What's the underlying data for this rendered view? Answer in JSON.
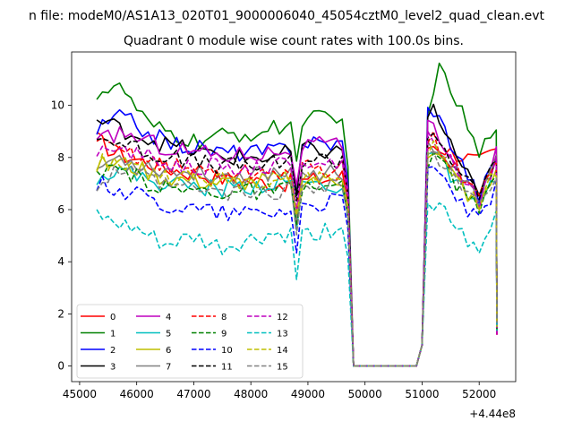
{
  "chart_data": {
    "type": "line",
    "suptitle": "n file: modeM0/AS1A13_020T01_9000006040_45054cztM0_level2_quad_clean.evt",
    "title": "Quadrant 0 module wise count rates with 100.0s bins.",
    "xlabel": "",
    "ylabel": "",
    "x_offset_text": "+4.44e8",
    "xlim": [
      44860,
      52640
    ],
    "ylim": [
      -0.6,
      12.05
    ],
    "xticks": [
      45000,
      46000,
      47000,
      48000,
      49000,
      50000,
      51000,
      52000
    ],
    "yticks": [
      0,
      2,
      4,
      6,
      8,
      10
    ],
    "grid": false,
    "legend_loc": "lower-left",
    "legend_ncol": 4,
    "series": [
      {
        "name": "0",
        "color": "#ff0000",
        "dash": "solid",
        "level": 7.3,
        "anchors": [
          [
            45300,
            8.7
          ],
          [
            45600,
            8.2
          ],
          [
            46500,
            7.6
          ],
          [
            47500,
            7.2
          ],
          [
            48500,
            7.0
          ],
          [
            49500,
            7.2
          ],
          [
            51200,
            8.5
          ],
          [
            52000,
            7.8
          ],
          [
            52300,
            8.2
          ]
        ]
      },
      {
        "name": "1",
        "color": "#008000",
        "dash": "solid",
        "level": 9.0,
        "anchors": [
          [
            45300,
            10.5
          ],
          [
            45600,
            10.7
          ],
          [
            45800,
            10.5
          ],
          [
            46200,
            9.2
          ],
          [
            47000,
            8.6
          ],
          [
            47500,
            8.8
          ],
          [
            48300,
            9.0
          ],
          [
            49000,
            9.6
          ],
          [
            49500,
            9.3
          ],
          [
            51100,
            10.0
          ],
          [
            51300,
            11.3
          ],
          [
            51600,
            10.2
          ],
          [
            52000,
            8.0
          ],
          [
            52300,
            9.4
          ]
        ]
      },
      {
        "name": "2",
        "color": "#0000ff",
        "dash": "solid",
        "level": 8.3,
        "anchors": [
          [
            45300,
            9.0
          ],
          [
            45700,
            9.6
          ],
          [
            46500,
            8.6
          ],
          [
            47500,
            8.2
          ],
          [
            48300,
            8.2
          ],
          [
            49000,
            8.6
          ],
          [
            49500,
            8.5
          ],
          [
            51200,
            9.9
          ],
          [
            52000,
            6.5
          ],
          [
            52300,
            8.0
          ]
        ]
      },
      {
        "name": "3",
        "color": "#000000",
        "dash": "solid",
        "level": 8.0,
        "anchors": [
          [
            45300,
            9.4
          ],
          [
            45600,
            9.2
          ],
          [
            46500,
            8.5
          ],
          [
            47500,
            8.0
          ],
          [
            48300,
            8.0
          ],
          [
            49000,
            8.3
          ],
          [
            49500,
            8.2
          ],
          [
            51200,
            9.8
          ],
          [
            52000,
            6.4
          ],
          [
            52300,
            8.0
          ]
        ]
      },
      {
        "name": "4",
        "color": "#bf00bf",
        "dash": "solid",
        "level": 8.0,
        "anchors": [
          [
            45300,
            8.5
          ],
          [
            45700,
            9.0
          ],
          [
            46500,
            8.4
          ],
          [
            47500,
            8.1
          ],
          [
            48300,
            8.2
          ],
          [
            49000,
            8.5
          ],
          [
            49500,
            8.4
          ],
          [
            51200,
            9.2
          ],
          [
            52000,
            6.2
          ],
          [
            52300,
            8.1
          ]
        ]
      },
      {
        "name": "5",
        "color": "#00bfbf",
        "dash": "solid",
        "level": 6.9,
        "anchors": [
          [
            45300,
            7.3
          ],
          [
            45700,
            7.5
          ],
          [
            46500,
            7.0
          ],
          [
            47500,
            6.8
          ],
          [
            48300,
            7.0
          ],
          [
            49000,
            7.0
          ],
          [
            49500,
            6.9
          ],
          [
            51200,
            8.2
          ],
          [
            52000,
            5.9
          ],
          [
            52300,
            7.2
          ]
        ]
      },
      {
        "name": "6",
        "color": "#bfbf00",
        "dash": "solid",
        "level": 7.1,
        "anchors": [
          [
            45300,
            7.7
          ],
          [
            45700,
            7.8
          ],
          [
            46500,
            7.2
          ],
          [
            47500,
            7.0
          ],
          [
            48300,
            7.1
          ],
          [
            49000,
            7.2
          ],
          [
            49500,
            7.1
          ],
          [
            51200,
            8.3
          ],
          [
            52000,
            6.0
          ],
          [
            52300,
            7.5
          ]
        ]
      },
      {
        "name": "7",
        "color": "#808080",
        "dash": "solid",
        "level": 7.4,
        "anchors": [
          [
            45300,
            7.6
          ],
          [
            45700,
            8.0
          ],
          [
            46500,
            7.5
          ],
          [
            47500,
            7.3
          ],
          [
            48300,
            7.4
          ],
          [
            49000,
            7.5
          ],
          [
            49500,
            7.4
          ],
          [
            51200,
            8.5
          ],
          [
            52000,
            6.3
          ],
          [
            52300,
            7.8
          ]
        ]
      },
      {
        "name": "8",
        "color": "#ff0000",
        "dash": "dashed",
        "level": 7.5,
        "anchors": [
          [
            45300,
            8.5
          ],
          [
            45700,
            8.3
          ],
          [
            46500,
            7.7
          ],
          [
            47500,
            7.4
          ],
          [
            48300,
            7.4
          ],
          [
            49000,
            7.6
          ],
          [
            49500,
            7.5
          ],
          [
            51200,
            8.7
          ],
          [
            52000,
            6.4
          ],
          [
            52300,
            8.1
          ]
        ]
      },
      {
        "name": "9",
        "color": "#008000",
        "dash": "dashed",
        "level": 6.7,
        "anchors": [
          [
            45300,
            7.2
          ],
          [
            45700,
            7.5
          ],
          [
            46500,
            6.8
          ],
          [
            47500,
            6.7
          ],
          [
            48300,
            6.7
          ],
          [
            49000,
            6.9
          ],
          [
            49500,
            6.8
          ],
          [
            51200,
            8.0
          ],
          [
            52000,
            6.0
          ],
          [
            52300,
            7.3
          ]
        ]
      },
      {
        "name": "10",
        "color": "#0000ff",
        "dash": "dashed",
        "level": 6.2,
        "anchors": [
          [
            45300,
            7.0
          ],
          [
            45700,
            6.8
          ],
          [
            46500,
            6.2
          ],
          [
            47500,
            5.9
          ],
          [
            48300,
            5.9
          ],
          [
            49000,
            6.2
          ],
          [
            49500,
            6.3
          ],
          [
            51200,
            7.6
          ],
          [
            52000,
            5.5
          ],
          [
            52300,
            6.9
          ]
        ]
      },
      {
        "name": "11",
        "color": "#000000",
        "dash": "dashed",
        "level": 7.8,
        "anchors": [
          [
            45300,
            8.8
          ],
          [
            45700,
            8.6
          ],
          [
            46500,
            8.0
          ],
          [
            47500,
            7.7
          ],
          [
            48300,
            7.7
          ],
          [
            49000,
            8.0
          ],
          [
            49500,
            7.9
          ],
          [
            51200,
            9.0
          ],
          [
            52000,
            6.4
          ],
          [
            52300,
            8.2
          ]
        ]
      },
      {
        "name": "12",
        "color": "#bf00bf",
        "dash": "dashed",
        "level": 7.7,
        "anchors": [
          [
            45300,
            8.0
          ],
          [
            45700,
            8.4
          ],
          [
            46500,
            7.8
          ],
          [
            47500,
            7.6
          ],
          [
            48300,
            7.6
          ],
          [
            49000,
            7.9
          ],
          [
            49500,
            7.8
          ],
          [
            51200,
            8.8
          ],
          [
            52000,
            6.3
          ],
          [
            52300,
            8.1
          ]
        ]
      },
      {
        "name": "13",
        "color": "#00bfbf",
        "dash": "dashed",
        "level": 4.9,
        "anchors": [
          [
            45300,
            5.8
          ],
          [
            45500,
            5.5
          ],
          [
            46000,
            5.2
          ],
          [
            46500,
            4.6
          ],
          [
            47000,
            4.9
          ],
          [
            47500,
            4.5
          ],
          [
            48300,
            5.0
          ],
          [
            49000,
            5.0
          ],
          [
            49500,
            5.3
          ],
          [
            51200,
            6.3
          ],
          [
            52000,
            4.2
          ],
          [
            52300,
            5.8
          ]
        ]
      },
      {
        "name": "14",
        "color": "#bfbf00",
        "dash": "dashed",
        "level": 7.2,
        "anchors": [
          [
            45300,
            7.8
          ],
          [
            45700,
            7.8
          ],
          [
            46500,
            7.3
          ],
          [
            47500,
            7.1
          ],
          [
            48300,
            7.2
          ],
          [
            49000,
            7.3
          ],
          [
            49500,
            7.2
          ],
          [
            51200,
            8.4
          ],
          [
            52000,
            6.1
          ],
          [
            52300,
            7.6
          ]
        ]
      },
      {
        "name": "15",
        "color": "#808080",
        "dash": "dashed",
        "level": 6.8,
        "anchors": [
          [
            45300,
            6.9
          ],
          [
            45700,
            7.5
          ],
          [
            46500,
            6.9
          ],
          [
            47500,
            6.6
          ],
          [
            48300,
            6.6
          ],
          [
            49000,
            6.9
          ],
          [
            49500,
            7.0
          ],
          [
            51200,
            8.1
          ],
          [
            52000,
            6.0
          ],
          [
            52300,
            7.3
          ]
        ]
      }
    ]
  }
}
